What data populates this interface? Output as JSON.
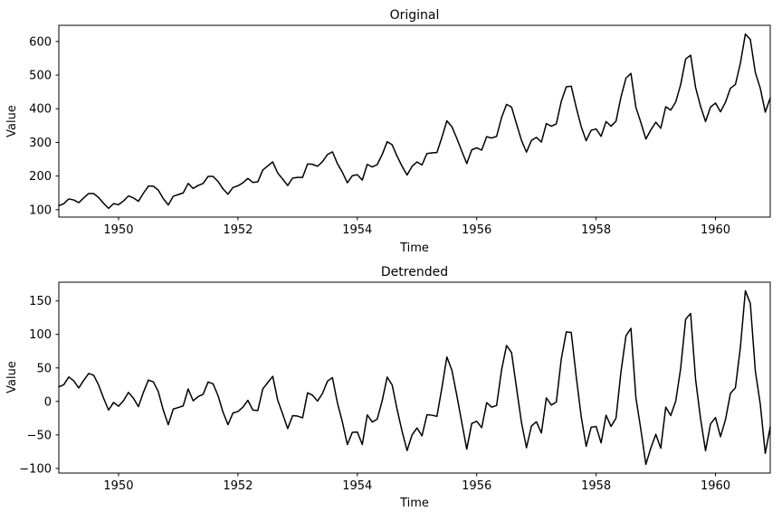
{
  "figure": {
    "background": "#ffffff",
    "line_color": "#000000",
    "axes_color": "#000000"
  },
  "chart_data": [
    {
      "type": "line",
      "title": "Original",
      "xlabel": "Time",
      "ylabel": "Value",
      "grid": false,
      "legend": null,
      "x_start": 1949.0,
      "x_step": 0.0833333,
      "xlim": [
        1949.0,
        1960.9167
      ],
      "ylim": [
        78.1,
        647.9
      ],
      "xticks": [
        1950,
        1952,
        1954,
        1956,
        1958,
        1960
      ],
      "xtick_labels": [
        "1950",
        "1952",
        "1954",
        "1956",
        "1958",
        "1960"
      ],
      "yticks": [
        100,
        200,
        300,
        400,
        500,
        600
      ],
      "ytick_labels": [
        "100",
        "200",
        "300",
        "400",
        "500",
        "600"
      ],
      "series": [
        {
          "name": "Original",
          "color": "#000000",
          "values": [
            112,
            118,
            132,
            129,
            121,
            135,
            148,
            148,
            136,
            119,
            104,
            118,
            115,
            126,
            141,
            135,
            125,
            149,
            170,
            170,
            158,
            133,
            114,
            140,
            145,
            150,
            178,
            163,
            172,
            178,
            199,
            199,
            184,
            162,
            146,
            166,
            171,
            180,
            193,
            181,
            183,
            218,
            230,
            242,
            209,
            191,
            172,
            194,
            196,
            196,
            236,
            235,
            229,
            243,
            264,
            272,
            237,
            211,
            180,
            201,
            204,
            188,
            235,
            227,
            234,
            264,
            302,
            293,
            259,
            229,
            203,
            229,
            242,
            233,
            267,
            269,
            270,
            315,
            364,
            347,
            312,
            274,
            237,
            278,
            284,
            277,
            317,
            313,
            318,
            374,
            413,
            405,
            355,
            306,
            271,
            306,
            315,
            301,
            356,
            348,
            355,
            422,
            465,
            467,
            404,
            347,
            305,
            336,
            340,
            318,
            362,
            348,
            363,
            435,
            491,
            505,
            404,
            359,
            310,
            337,
            360,
            342,
            406,
            396,
            420,
            472,
            548,
            559,
            463,
            407,
            362,
            405,
            417,
            391,
            419,
            461,
            472,
            535,
            622,
            606,
            508,
            461,
            390,
            432
          ]
        }
      ]
    },
    {
      "type": "line",
      "title": "Detrended",
      "xlabel": "Time",
      "ylabel": "Value",
      "grid": false,
      "legend": null,
      "x_start": 1949.0,
      "x_step": 0.0833333,
      "xlim": [
        1949.0,
        1960.9167
      ],
      "ylim": [
        -106.9,
        177.9
      ],
      "xticks": [
        1950,
        1952,
        1954,
        1956,
        1958,
        1960
      ],
      "xtick_labels": [
        "1950",
        "1952",
        "1954",
        "1956",
        "1958",
        "1960"
      ],
      "yticks": [
        -100,
        -50,
        0,
        50,
        100,
        150
      ],
      "ytick_labels": [
        "−100",
        "−50",
        "0",
        "50",
        "100",
        "150"
      ],
      "series": [
        {
          "name": "Detrended",
          "color": "#000000",
          "values": [
            21.7,
            25.0,
            36.4,
            30.7,
            20.1,
            31.4,
            41.7,
            39.1,
            24.4,
            4.8,
            -12.9,
            -1.5,
            -7.2,
            1.1,
            13.5,
            4.8,
            -7.8,
            13.5,
            31.9,
            29.2,
            14.5,
            -13.1,
            -34.8,
            -11.4,
            -9.1,
            -6.7,
            18.6,
            0.9,
            7.3,
            10.6,
            29.0,
            26.3,
            8.7,
            -16.0,
            -34.7,
            -17.3,
            -15.0,
            -8.6,
            1.7,
            -12.9,
            -13.6,
            18.7,
            28.1,
            37.4,
            1.8,
            -18.9,
            -40.5,
            -21.2,
            -21.9,
            -24.5,
            12.8,
            9.2,
            0.5,
            11.9,
            30.2,
            35.5,
            -2.1,
            -30.8,
            -64.4,
            -46.1,
            -45.7,
            -64.4,
            -20.1,
            -30.7,
            -26.4,
            1.0,
            36.3,
            24.7,
            -12.0,
            -44.7,
            -73.3,
            -50.0,
            -39.6,
            -51.3,
            -19.9,
            -20.6,
            -22.3,
            20.1,
            66.4,
            46.8,
            9.1,
            -31.5,
            -71.2,
            -32.9,
            -29.5,
            -39.2,
            -1.8,
            -8.5,
            -6.1,
            47.2,
            83.5,
            72.9,
            20.2,
            -31.4,
            -69.1,
            -36.7,
            -30.4,
            -47.1,
            5.3,
            -5.4,
            -1.0,
            63.3,
            103.7,
            103.0,
            37.3,
            -22.3,
            -67.0,
            -38.6,
            -37.3,
            -61.9,
            -20.6,
            -37.3,
            -24.9,
            44.4,
            97.8,
            109.1,
            5.5,
            -42.2,
            -93.9,
            -69.5,
            -49.2,
            -69.8,
            -8.5,
            -21.1,
            0.2,
            49.5,
            122.9,
            131.2,
            32.6,
            -26.1,
            -73.7,
            -33.4,
            -24.1,
            -52.7,
            -27.4,
            12.0,
            20.3,
            80.7,
            165.0,
            146.3,
            45.7,
            -4.0,
            -77.6,
            -38.3
          ]
        }
      ]
    }
  ]
}
